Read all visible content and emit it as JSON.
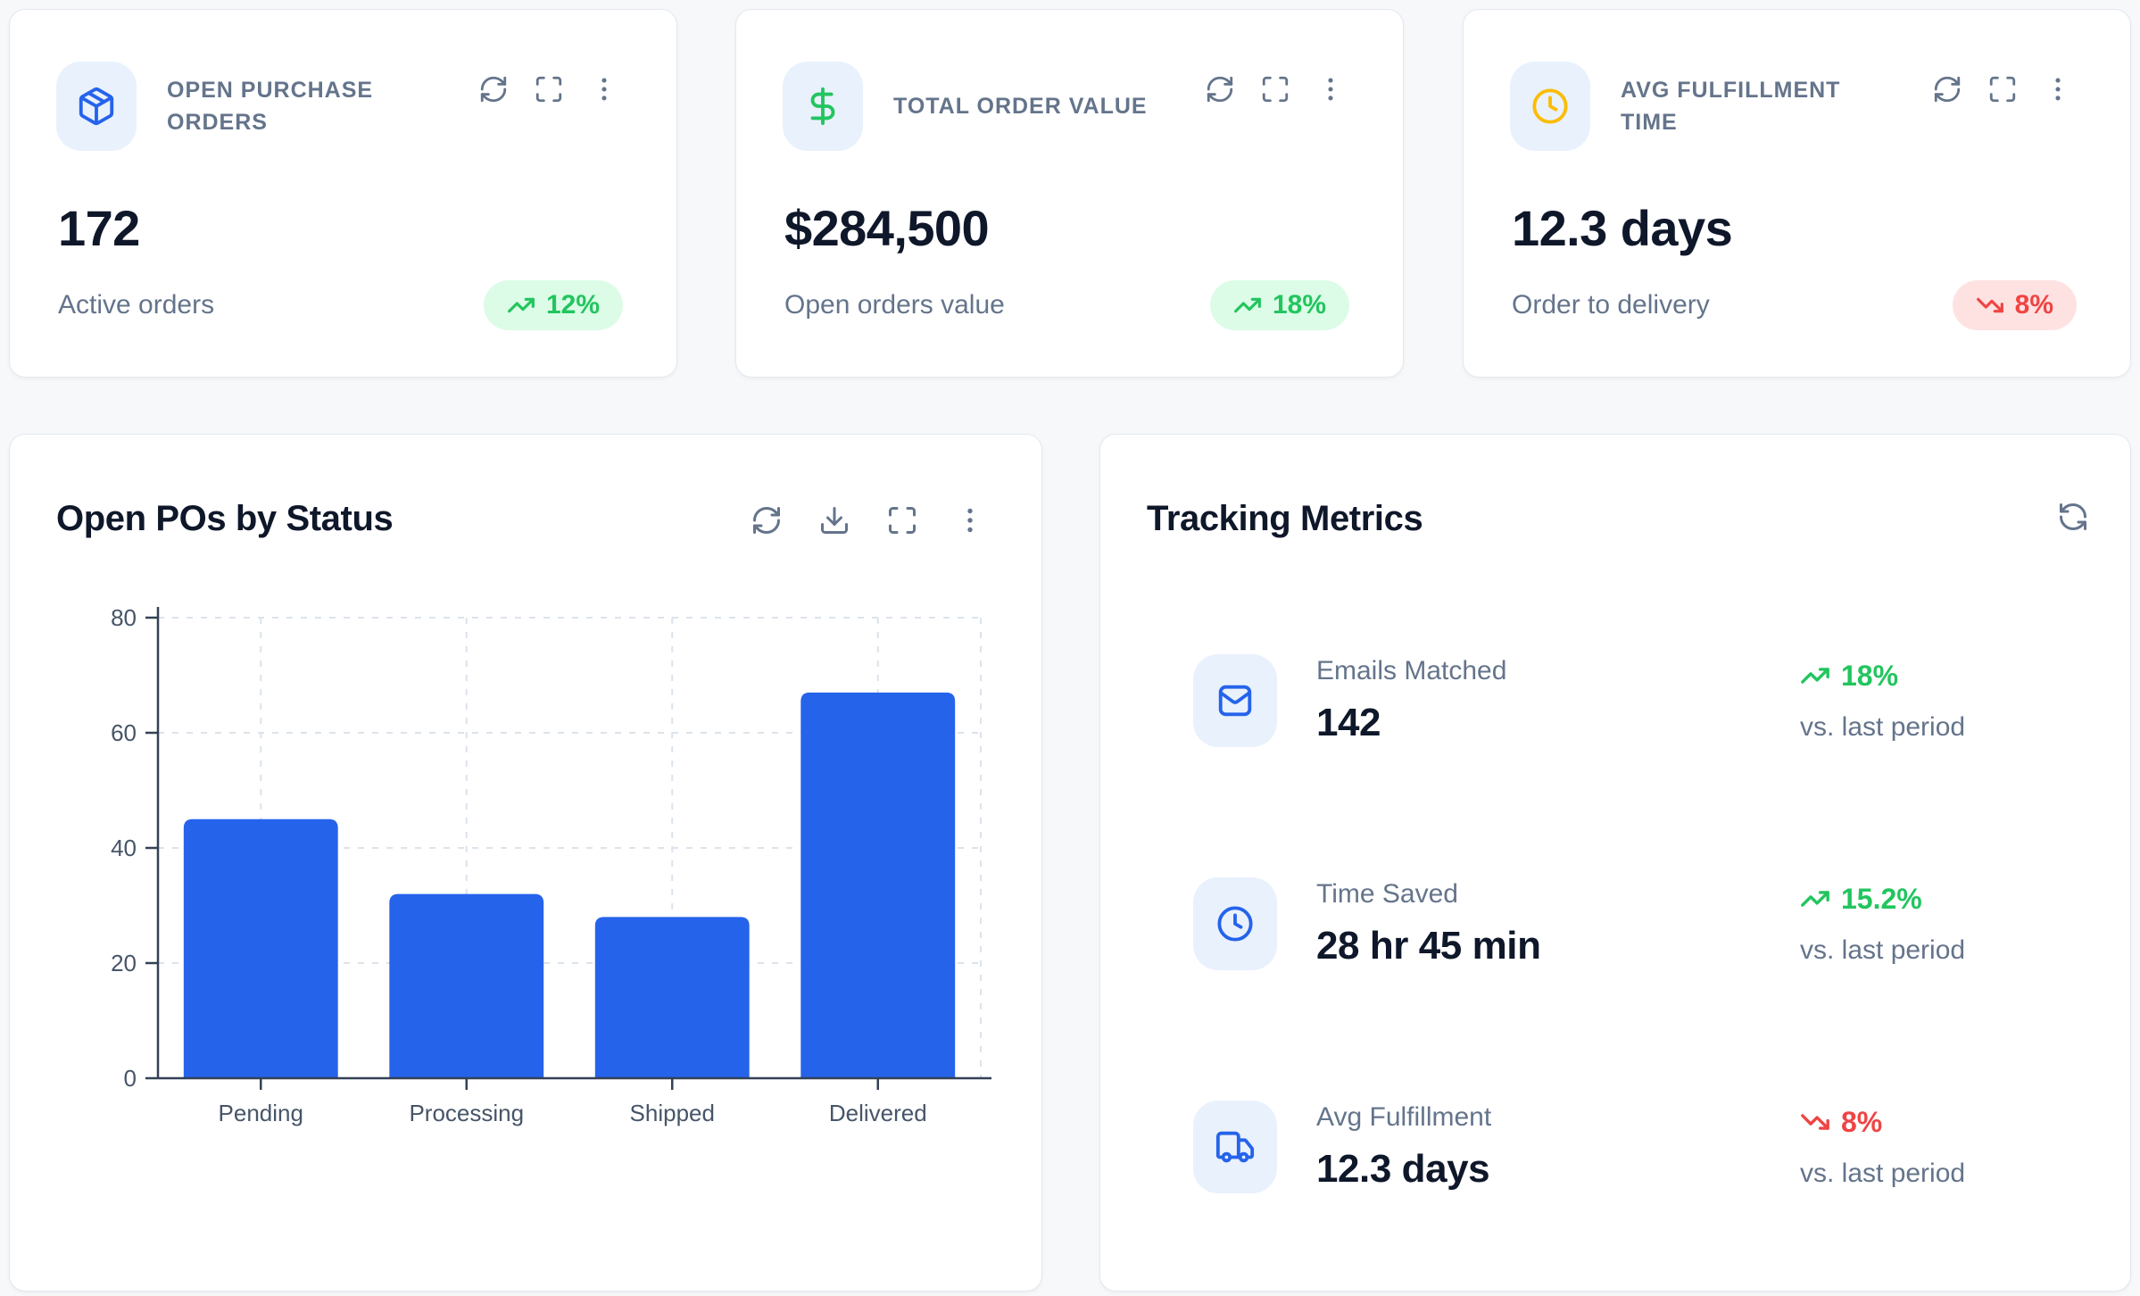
{
  "kpi_cards": [
    {
      "title": "OPEN PURCHASE ORDERS",
      "icon": "package-icon",
      "value": "172",
      "sublabel": "Active orders",
      "trend": {
        "direction": "up",
        "label": "12%"
      }
    },
    {
      "title": "TOTAL ORDER VALUE",
      "icon": "dollar-icon",
      "value": "$284,500",
      "sublabel": "Open orders value",
      "trend": {
        "direction": "up",
        "label": "18%"
      }
    },
    {
      "title": "AVG FULFILLMENT TIME",
      "icon": "clock-icon",
      "value": "12.3 days",
      "sublabel": "Order to delivery",
      "trend": {
        "direction": "down",
        "label": "8%"
      }
    }
  ],
  "chart_card": {
    "title": "Open POs by Status"
  },
  "chart_data": {
    "type": "bar",
    "title": "Open POs by Status",
    "categories": [
      "Pending",
      "Processing",
      "Shipped",
      "Delivered"
    ],
    "values": [
      45,
      32,
      28,
      67
    ],
    "ylim": [
      0,
      80
    ],
    "yticks": [
      0,
      20,
      40,
      60,
      80
    ],
    "xlabel": "",
    "ylabel": "",
    "grid": "dashed",
    "legend": "none",
    "bar_color": "#2563eb"
  },
  "tracking_card": {
    "title": "Tracking Metrics",
    "metrics": [
      {
        "icon": "mail-icon",
        "label": "Emails Matched",
        "value": "142",
        "trend": {
          "direction": "up",
          "label": "18%"
        },
        "compare": "vs. last period"
      },
      {
        "icon": "clock-icon",
        "label": "Time Saved",
        "value": "28 hr 45 min",
        "trend": {
          "direction": "up",
          "label": "15.2%"
        },
        "compare": "vs. last period"
      },
      {
        "icon": "truck-icon",
        "label": "Avg Fulfillment",
        "value": "12.3 days",
        "trend": {
          "direction": "down",
          "label": "8%"
        },
        "compare": "vs. last period"
      }
    ]
  },
  "colors": {
    "accent_blue": "#2563eb",
    "positive": "#22c55e",
    "positive_bg": "#dcfce7",
    "negative": "#ef4444",
    "negative_bg": "#fee2e2",
    "icon_tile_bg": "#e9f1fd",
    "clock_yellow": "#fbbc04",
    "axis": "#334155",
    "gridline": "#dce3ec"
  }
}
